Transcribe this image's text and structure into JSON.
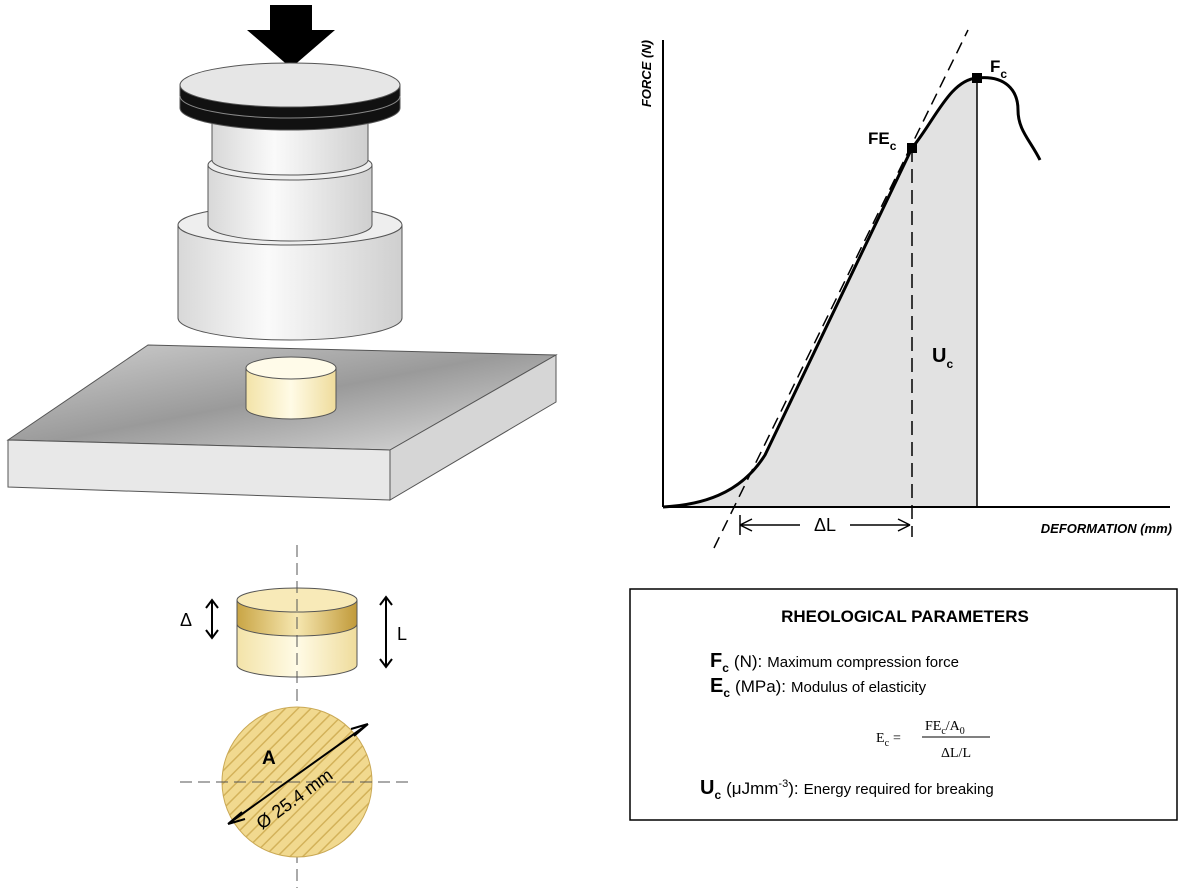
{
  "graph": {
    "y_axis_label": "FORCE (N)",
    "x_axis_label": "DEFORMATION (mm)",
    "peak_label": {
      "text": "F",
      "sub": "c"
    },
    "elastic_label": {
      "text": "FE",
      "sub": "c"
    },
    "area_label": {
      "text": "U",
      "sub": "c"
    },
    "delta_label": "ΔL"
  },
  "sample": {
    "height_change": "Δ",
    "length": "L",
    "area": "A",
    "diameter": "Ø 25.4 mm"
  },
  "parameters": {
    "title": "RHEOLOGICAL PARAMETERS",
    "items": [
      {
        "symbol": "F",
        "sub": "c",
        "unit": "(N):",
        "description": "Maximum compression force"
      },
      {
        "symbol": "E",
        "sub": "c",
        "unit": "(MPa):",
        "description": "Modulus of elasticity"
      },
      {
        "symbol": "U",
        "sub": "c",
        "unit": "(μJmm",
        "unit_sup": "-3",
        "unit_end": "):",
        "description": "Energy required for breaking"
      }
    ],
    "formula": {
      "lhs": "E",
      "lhs_sub": "c",
      "equals": "=",
      "num_a": "FE",
      "num_sub": "c",
      "num_b": "/A",
      "num_sub2": "0",
      "den": "ΔL/L"
    }
  }
}
